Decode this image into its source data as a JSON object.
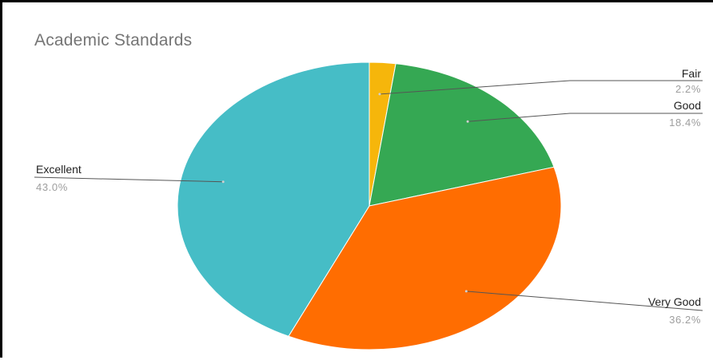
{
  "chart_data": {
    "type": "pie",
    "title": "Academic Standards",
    "slices": [
      {
        "label": "Fair",
        "value": 2.2,
        "pct_label": "2.2%",
        "color": "#f6b60b"
      },
      {
        "label": "Good",
        "value": 18.4,
        "pct_label": "18.4%",
        "color": "#35a853"
      },
      {
        "label": "Very Good",
        "value": 36.2,
        "pct_label": "36.2%",
        "color": "#ff6d01"
      },
      {
        "label": "Excellent",
        "value": 43.0,
        "pct_label": "43.0%",
        "color": "#46bdc6"
      }
    ],
    "legend": "none",
    "label_style": "leader-lines"
  }
}
